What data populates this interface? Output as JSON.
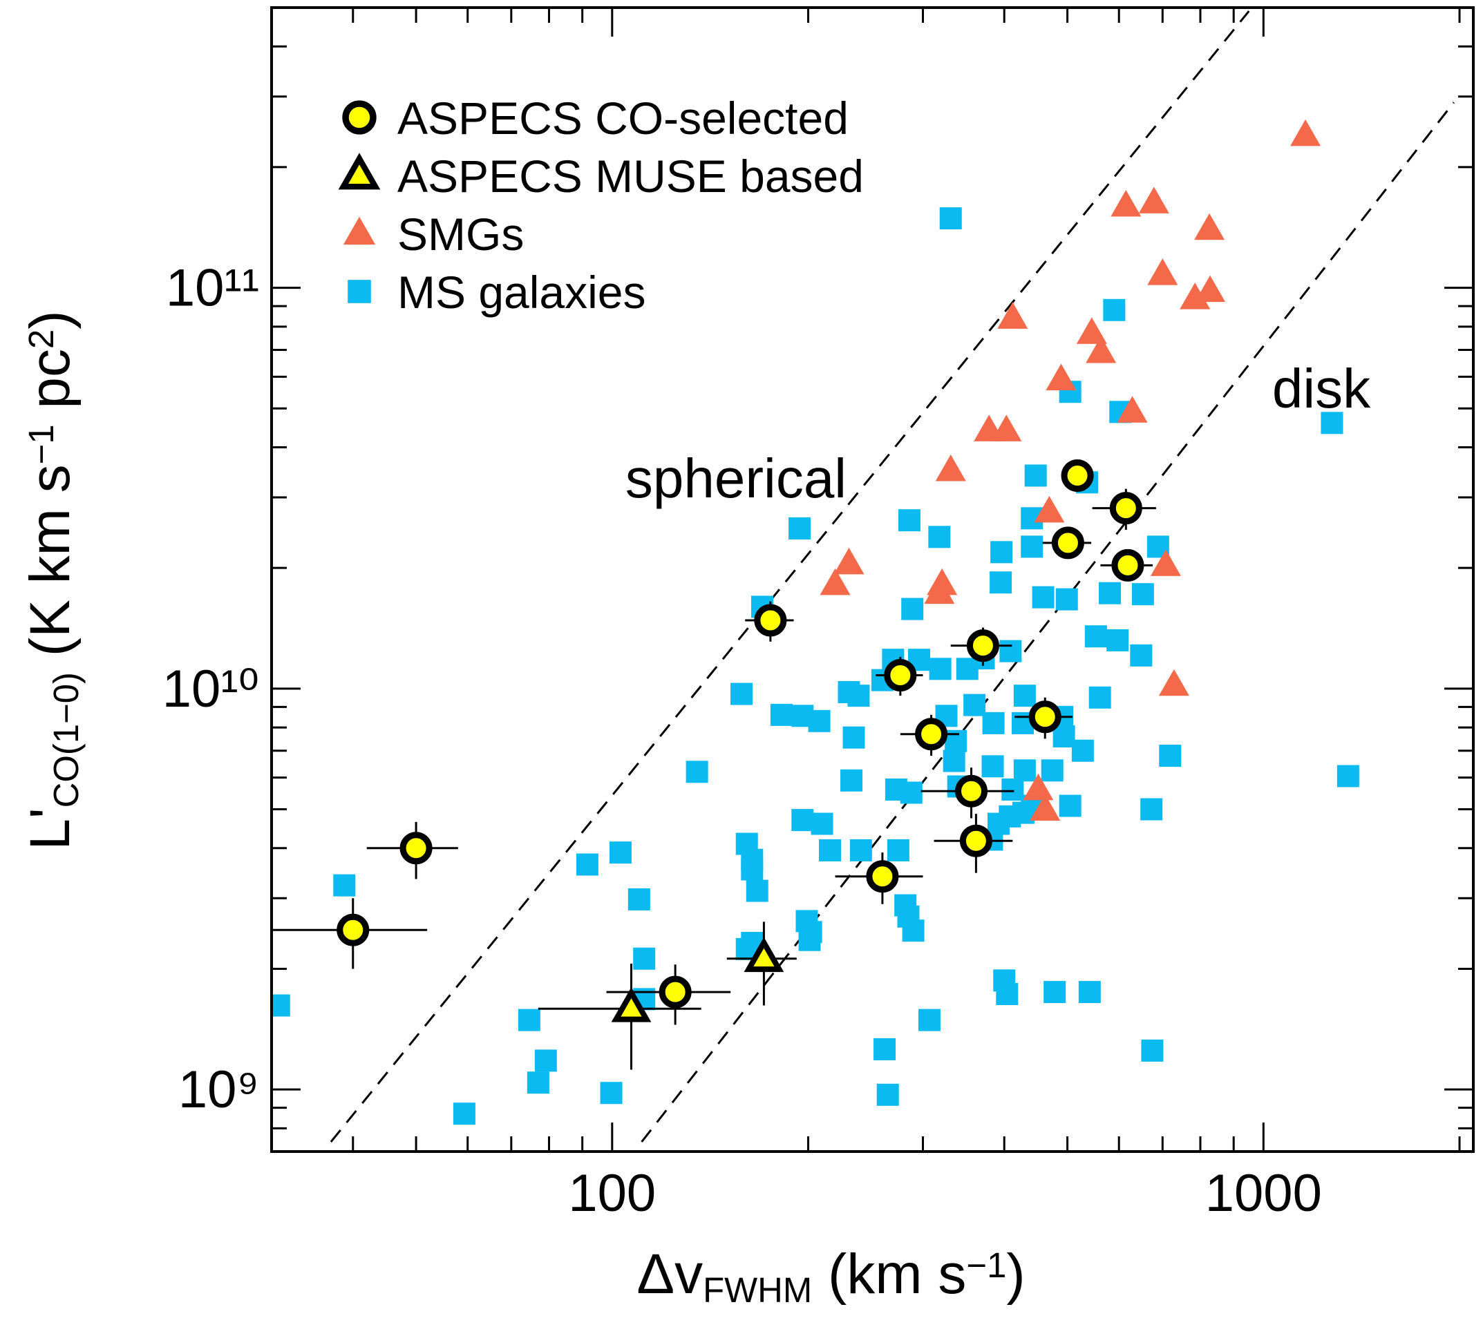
{
  "chart_data": {
    "type": "scatter",
    "xlabel": [
      {
        "text": "Δv"
      },
      {
        "text": "FWHM",
        "script": "sub"
      },
      {
        "text": " (km s"
      },
      {
        "text": "−1",
        "script": "super"
      },
      {
        "text": ")"
      }
    ],
    "ylabel": [
      {
        "text": "L'"
      },
      {
        "text": "CO(1−0)",
        "script": "sub"
      },
      {
        "text": " (K km s"
      },
      {
        "text": "−1",
        "script": "super"
      },
      {
        "text": " pc"
      },
      {
        "text": "2",
        "script": "super"
      },
      {
        "text": ")"
      }
    ],
    "xlog": true,
    "ylog": true,
    "xlim": [
      30,
      2100
    ],
    "ylim": [
      700000000,
      500000000000
    ],
    "xticks": [
      100,
      1000
    ],
    "xminorticks": [
      40,
      50,
      60,
      70,
      80,
      90,
      200,
      300,
      400,
      500,
      600,
      700,
      800,
      900,
      2000
    ],
    "yticks": [
      {
        "value": 1000000000,
        "label": "10⁹"
      },
      {
        "value": 10000000000,
        "label": "10¹⁰"
      },
      {
        "value": 100000000000,
        "label": "10¹¹"
      }
    ],
    "yminorticks": [
      800000000,
      900000000,
      2000000000,
      3000000000,
      4000000000,
      5000000000,
      6000000000,
      7000000000,
      8000000000,
      9000000000,
      20000000000,
      30000000000,
      40000000000,
      50000000000,
      60000000000,
      70000000000,
      80000000000,
      90000000000,
      200000000000,
      300000000000,
      400000000000
    ],
    "legend": "upper left",
    "series": [
      {
        "name": "ASPECS CO-selected",
        "marker": "circle",
        "color": "#ffff00",
        "edgecolor": "#000000",
        "x": [
          40,
          50,
          125,
          175,
          277,
          260,
          309,
          356,
          362,
          371,
          462,
          501,
          518,
          615,
          619
        ],
        "y": [
          2500000000,
          4000000000,
          1750000000,
          14800000000,
          10800000000,
          3400000000,
          7700000000,
          5550000000,
          4170000000,
          12800000000,
          8500000000,
          23100000000,
          34000000000,
          28200000000,
          20300000000
        ],
        "xerr": [
          12,
          8,
          27,
          15,
          23,
          40,
          32,
          58,
          50,
          40,
          47,
          43,
          null,
          69,
          57
        ],
        "yerr": [
          500000000,
          650000000,
          300000000,
          1700000000,
          1200000000,
          500000000,
          900000000,
          800000000,
          700000000,
          1400000000,
          1000000000,
          2000000000,
          null,
          3300000000,
          1700000000
        ]
      },
      {
        "name": "ASPECS MUSE based",
        "marker": "triangle",
        "color": "#ffff00",
        "edgecolor": "#000000",
        "x": [
          107,
          171
        ],
        "y": [
          1590000000,
          2120000000
        ],
        "xerr": [
          30,
          21
        ],
        "yerr": [
          470000000,
          500000000
        ]
      },
      {
        "name": "SMGs",
        "marker": "triangle",
        "color": "#f4694a",
        "x": [
          1160,
          615,
          679,
          826,
          700,
          785,
          828,
          412,
          545,
          563,
          489,
          629,
          379,
          403,
          331,
          469,
          231,
          220,
          321,
          318,
          708,
          729,
          451,
          462
        ],
        "y": [
          240000000000,
          160000000000,
          163000000000,
          140000000000,
          108000000000,
          94000000000,
          98000000000,
          84000000000,
          77000000000,
          69000000000,
          59000000000,
          49000000000,
          44000000000,
          44000000000,
          35000000000,
          27600000000,
          20500000000,
          18200000000,
          18200000000,
          17300000000,
          20300000000,
          10200000000,
          5600000000,
          4980000000
        ]
      },
      {
        "name": "MS galaxies",
        "marker": "square",
        "color": "#0abaf0",
        "x": [
          331,
          590,
          505,
          1274,
          603,
          447,
          536,
          441,
          441,
          396,
          689,
          286,
          318,
          194,
          395,
          459,
          499,
          581,
          653,
          289,
          170,
          553,
          597,
          649,
          409,
          270,
          296,
          319,
          351,
          372,
          430,
          561,
          231,
          239,
          260,
          158,
          182,
          196,
          208,
          326,
          360,
          491,
          337,
          385,
          427,
          494,
          528,
          335,
          340,
          384,
          474,
          719,
          235,
          135,
          233,
          430,
          273,
          288,
          412,
          441,
          505,
          673,
          196,
          210,
          408,
          428,
          392,
          383,
          216,
          241,
          275,
          91.6,
          103,
          161,
          164,
          110,
          167,
          282,
          285,
          290,
          199,
          201,
          161,
          164,
          112,
          38.8,
          30.8,
          74.6,
          79.1,
          77,
          99.7,
          59.3,
          400,
          404,
          478,
          541,
          307,
          262,
          265,
          675,
          1349,
          202,
          112,
          164
        ],
        "y": [
          149000000000,
          88000000000,
          55000000000,
          46000000000,
          49000000000,
          34000000000,
          32700000000,
          26600000000,
          22600000000,
          21900000000,
          22600000000,
          26300000000,
          23900000000,
          25100000000,
          18400000000,
          16900000000,
          16700000000,
          17300000000,
          17200000000,
          15800000000,
          16000000000,
          13500000000,
          13200000000,
          12100000000,
          12400000000,
          11800000000,
          11800000000,
          11200000000,
          11200000000,
          11900000000,
          9600000000,
          9500000000,
          9800000000,
          9600000000,
          10500000000,
          9700000000,
          8600000000,
          8550000000,
          8300000000,
          8550000000,
          9100000000,
          8500000000,
          7400000000,
          8200000000,
          8200000000,
          7600000000,
          7000000000,
          6600000000,
          5700000000,
          6400000000,
          6250000000,
          6800000000,
          7550000000,
          6200000000,
          5900000000,
          6250000000,
          5600000000,
          5500000000,
          5600000000,
          5100000000,
          5100000000,
          5000000000,
          4700000000,
          4600000000,
          4800000000,
          4900000000,
          4600000000,
          4200000000,
          3950000000,
          3950000000,
          3950000000,
          3640000000,
          3900000000,
          4100000000,
          3740000000,
          2980000000,
          3130000000,
          2880000000,
          2700000000,
          2490000000,
          2630000000,
          2360000000,
          2240000000,
          2320000000,
          2120000000,
          3230000000,
          1620000000,
          1490000000,
          1180000000,
          1040000000,
          980000000,
          870000000,
          1870000000,
          1730000000,
          1750000000,
          1750000000,
          1490000000,
          1260000000,
          970000000,
          1250000000,
          6050000000,
          2470000000,
          1680000000,
          3540000000
        ]
      }
    ],
    "lines": [
      {
        "label": "spherical",
        "style": "dashed",
        "color": "#000000",
        "x": [
          37,
          950
        ],
        "y": [
          740000000,
          490000000000
        ]
      },
      {
        "label": "disk",
        "style": "dashed",
        "color": "#000000",
        "x": [
          111,
          1960
        ],
        "y": [
          740000000,
          290000000000
        ]
      }
    ]
  }
}
